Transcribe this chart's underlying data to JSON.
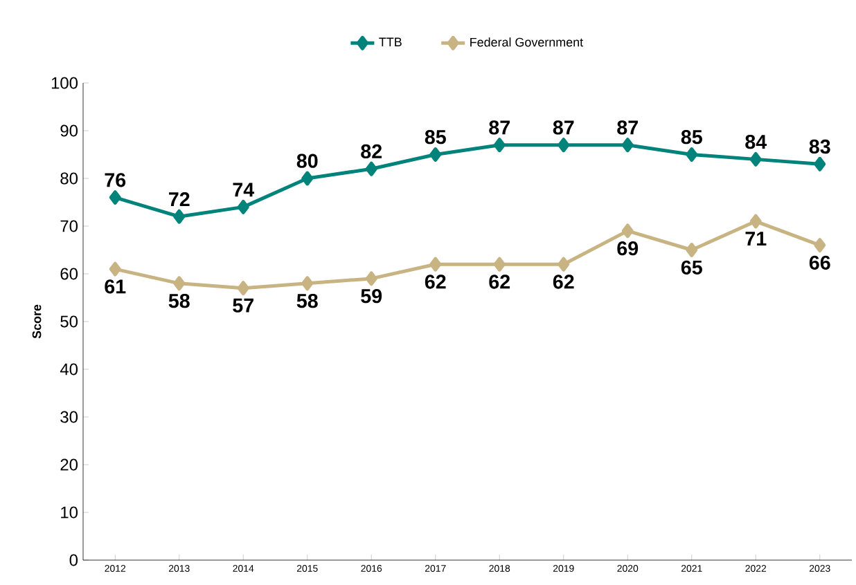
{
  "chart_data": {
    "type": "line",
    "ylabel": "Score",
    "categories": [
      "2012",
      "2013",
      "2014",
      "2015",
      "2016",
      "2017",
      "2018",
      "2019",
      "2020",
      "2021",
      "2022",
      "2023"
    ],
    "series": [
      {
        "name": "TTB",
        "color": "#00837b",
        "values": [
          76,
          72,
          74,
          80,
          82,
          85,
          87,
          87,
          87,
          85,
          84,
          83
        ]
      },
      {
        "name": "Federal Government",
        "color": "#c8b382",
        "values": [
          61,
          58,
          57,
          58,
          59,
          62,
          62,
          62,
          69,
          65,
          71,
          66
        ]
      }
    ],
    "ylim": [
      0,
      100
    ],
    "yticks": [
      0,
      10,
      20,
      30,
      40,
      50,
      60,
      70,
      80,
      90,
      100
    ],
    "marker": "diamond",
    "data_labels": true,
    "legend": "top",
    "grid": false,
    "line_style": "solid"
  }
}
